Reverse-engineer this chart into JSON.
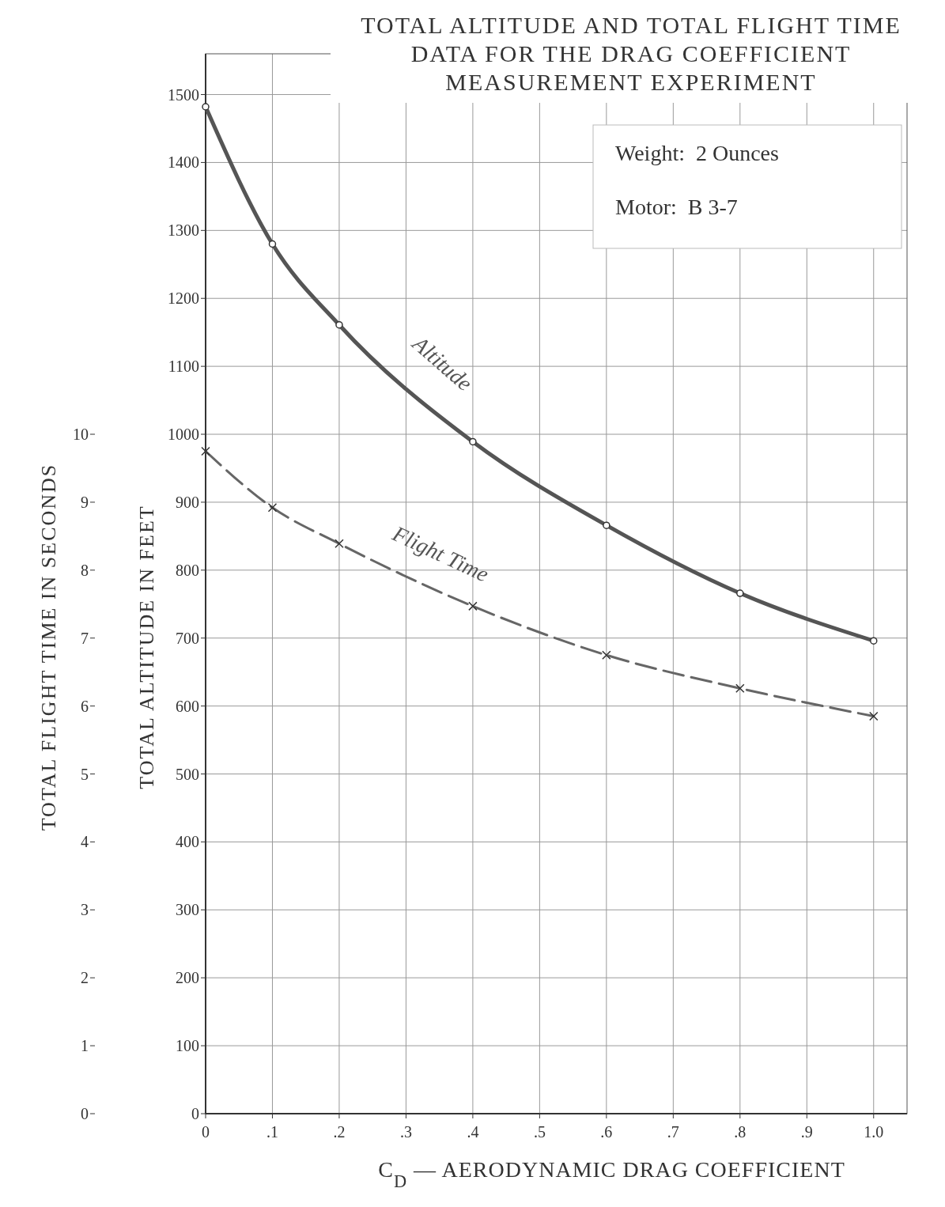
{
  "chart_data": {
    "type": "line",
    "title": "TOTAL ALTITUDE AND TOTAL FLIGHT TIME DATA FOR THE DRAG COEFFICIENT MEASUREMENT EXPERIMENT",
    "xlabel": "C$_{D}$ — AERODYNAMIC DRAG COEFFICIENT",
    "ylabel": "TOTAL ALTITUDE IN FEET",
    "y2label": "TOTAL FLIGHT TIME IN SECONDS",
    "annotations": [
      "Weight:  2 Ounces",
      "Motor:  B 3-7"
    ],
    "x": [
      0,
      0.1,
      0.2,
      0.4,
      0.6,
      0.8,
      1.0
    ],
    "series": [
      {
        "name": "Altitude",
        "color": "#555555",
        "marker": "circle",
        "line_style": "solid",
        "values": [
          1482,
          1280,
          1161,
          989,
          866,
          766,
          696
        ]
      },
      {
        "name": "Flight Time",
        "color": "#666666",
        "marker": "cross",
        "line_style": "dashed",
        "axis": "y2",
        "values": [
          9.75,
          8.92,
          8.39,
          7.47,
          6.75,
          6.26,
          5.85
        ]
      }
    ],
    "xlim": [
      0,
      1.05
    ],
    "xticks": [
      0,
      {
        "value": 0.1,
        "label": ".1"
      },
      {
        "value": 0.2,
        "label": ".2"
      },
      {
        "value": 0.3,
        "label": ".3"
      },
      {
        "value": 0.4,
        "label": ".4"
      },
      {
        "value": 0.5,
        "label": ".5"
      },
      {
        "value": 0.6,
        "label": ".6"
      },
      {
        "value": 0.7,
        "label": ".7"
      },
      {
        "value": 0.8,
        "label": ".8"
      },
      {
        "value": 0.9,
        "label": ".9"
      },
      {
        "value": 1.0,
        "label": "1.0"
      }
    ],
    "ylim": [
      0,
      1560
    ],
    "yticks": [
      0,
      100,
      200,
      300,
      400,
      500,
      600,
      700,
      800,
      900,
      1000,
      1100,
      1200,
      1300,
      1400,
      1500
    ],
    "y2lim": [
      0,
      15.6
    ],
    "y2ticks": [
      0,
      1,
      2,
      3,
      4,
      5,
      6,
      7,
      8,
      9,
      10
    ],
    "grid": true
  }
}
